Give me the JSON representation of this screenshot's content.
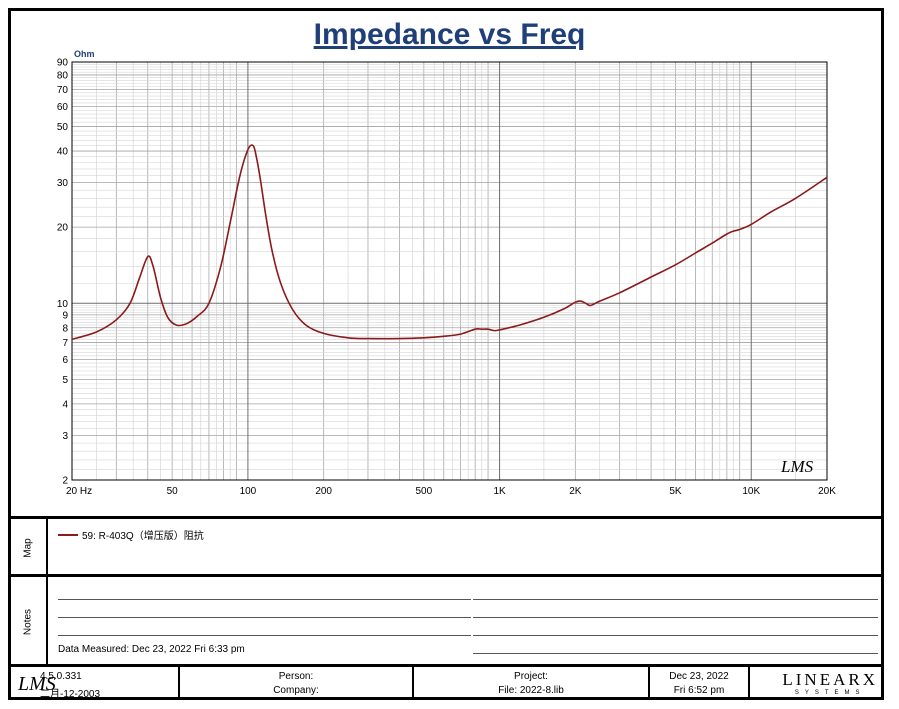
{
  "title": "Impedance vs Freq",
  "chart_data": {
    "type": "line",
    "title": "Impedance vs Freq",
    "xlabel": "Hz",
    "ylabel": "Ohm",
    "xscale": "log",
    "yscale": "log",
    "xlim": [
      20,
      20000
    ],
    "ylim": [
      2,
      90
    ],
    "x_ticks": [
      {
        "value": 20,
        "label": "20  Hz"
      },
      {
        "value": 50,
        "label": "50"
      },
      {
        "value": 100,
        "label": "100"
      },
      {
        "value": 200,
        "label": "200"
      },
      {
        "value": 500,
        "label": "500"
      },
      {
        "value": 1000,
        "label": "1K"
      },
      {
        "value": 2000,
        "label": "2K"
      },
      {
        "value": 5000,
        "label": "5K"
      },
      {
        "value": 10000,
        "label": "10K"
      },
      {
        "value": 20000,
        "label": "20K"
      }
    ],
    "y_ticks": [
      2,
      3,
      4,
      5,
      6,
      7,
      8,
      9,
      10,
      20,
      30,
      40,
      50,
      60,
      70,
      80,
      90
    ],
    "grid": true,
    "series": [
      {
        "name": "59: R-403Q（增压版）阻抗",
        "color": "#8b1a1a",
        "x": [
          20,
          25,
          30,
          34,
          37,
          40,
          42,
          45,
          48,
          52,
          57,
          63,
          70,
          78,
          86,
          93,
          100,
          105,
          108,
          112,
          118,
          125,
          135,
          150,
          170,
          200,
          250,
          300,
          400,
          500,
          600,
          700,
          800,
          850,
          900,
          950,
          1000,
          1200,
          1500,
          1800,
          2000,
          2100,
          2200,
          2300,
          2500,
          3000,
          4000,
          5000,
          6000,
          7000,
          8000,
          8500,
          9000,
          10000,
          12000,
          15000,
          20000
        ],
        "y": [
          7.2,
          7.7,
          8.6,
          10.0,
          12.5,
          15.3,
          14.0,
          10.5,
          8.8,
          8.2,
          8.3,
          8.9,
          10.0,
          14.0,
          22.0,
          32.0,
          40.5,
          42.0,
          38.0,
          31.0,
          22.0,
          16.0,
          12.0,
          9.5,
          8.2,
          7.6,
          7.3,
          7.25,
          7.25,
          7.3,
          7.4,
          7.55,
          7.9,
          7.9,
          7.9,
          7.8,
          7.85,
          8.2,
          8.8,
          9.5,
          10.1,
          10.2,
          10.0,
          9.8,
          10.2,
          11.0,
          12.7,
          14.2,
          15.8,
          17.3,
          18.8,
          19.3,
          19.6,
          20.5,
          23.0,
          26.0,
          31.5
        ]
      }
    ]
  },
  "watermark": "LMS",
  "map_section": {
    "label": "Map",
    "legend_text": "59: R-403Q（增压版）阻抗"
  },
  "notes_section": {
    "label": "Notes",
    "measured": "Data Measured: Dec 23, 2022  Fri  6:33 pm"
  },
  "footer": {
    "logo": "LMS",
    "version": "4.5.0.331",
    "version_date": "二月-12-2003",
    "person_label": "Person:",
    "company_label": "Company:",
    "project_label": "Project:",
    "file_label": "File: 2022-8.lib",
    "date": "Dec 23, 2022",
    "time": "Fri  6:52 pm",
    "brand_main": "LINEARX",
    "brand_sub": "SYSTEMS"
  }
}
